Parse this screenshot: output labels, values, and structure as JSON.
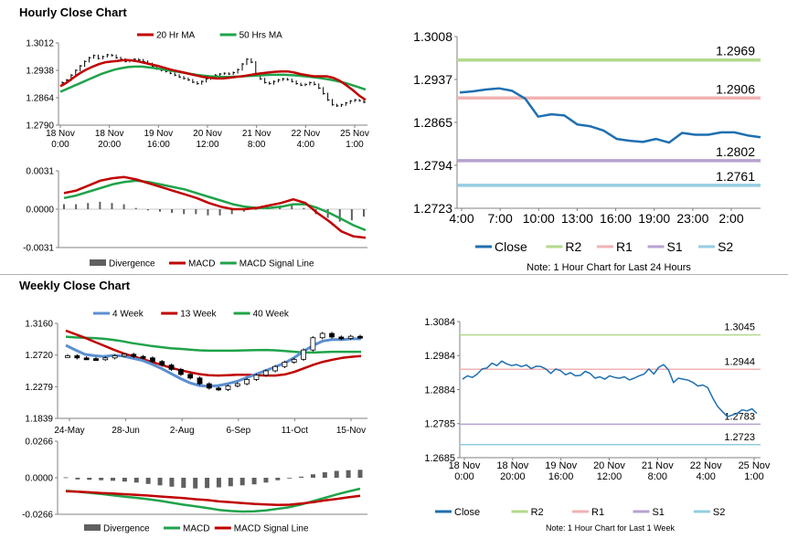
{
  "colors": {
    "ma20": "#c00000",
    "ma50": "#1fa34a",
    "ma4w": "#5b8fd0",
    "ma13w": "#c00000",
    "ma40w": "#1fa34a",
    "close": "#1f6fb0",
    "r2": "#b3d98c",
    "r1": "#f0b2b2",
    "s1": "#b7a2d0",
    "s2": "#93cde0",
    "divergence": "#606060",
    "price": "#000000",
    "axis": "#808080"
  },
  "hourly": {
    "title": "Hourly Close Chart",
    "price_chart": {
      "type": "line",
      "legend": [
        "20 Hr MA",
        "50 Hrs MA"
      ],
      "yticks": [
        "1.3012",
        "1.2938",
        "1.2864",
        "1.2790"
      ],
      "ylim": [
        1.279,
        1.3012
      ],
      "xtick_labels": [
        [
          "18 Nov",
          "0:00"
        ],
        [
          "18 Nov",
          "20:00"
        ],
        [
          "19 Nov",
          "16:00"
        ],
        [
          "20 Nov",
          "12:00"
        ],
        [
          "21 Nov",
          "8:00"
        ],
        [
          "22 Nov",
          "4:00"
        ],
        [
          "25 Nov",
          "1:00"
        ]
      ],
      "price": [
        1.2905,
        1.2912,
        1.2925,
        1.2938,
        1.295,
        1.2962,
        1.2972,
        1.2978,
        1.297,
        1.2975,
        1.298,
        1.2978,
        1.2972,
        1.2968,
        1.2962,
        1.2965,
        1.2968,
        1.2966,
        1.2962,
        1.2956,
        1.2948,
        1.2942,
        1.2938,
        1.2935,
        1.293,
        1.2925,
        1.292,
        1.2916,
        1.2912,
        1.2906,
        1.2902,
        1.2908,
        1.2915,
        1.292,
        1.2925,
        1.2928,
        1.293,
        1.2928,
        1.2932,
        1.294,
        1.2955,
        1.2968,
        1.296,
        1.293,
        1.2915,
        1.2905,
        1.2902,
        1.2908,
        1.2912,
        1.2915,
        1.2913,
        1.2908,
        1.2902,
        1.2898,
        1.29,
        1.2905,
        1.29,
        1.289,
        1.2875,
        1.2858,
        1.2845,
        1.2842,
        1.2845,
        1.285,
        1.2855,
        1.2858,
        1.2856,
        1.2852
      ],
      "series": [
        {
          "name": "20 Hr MA",
          "values": [
            1.2895,
            1.2905,
            1.2918,
            1.293,
            1.294,
            1.2948,
            1.2955,
            1.296,
            1.2962,
            1.2964,
            1.2966,
            1.2965,
            1.2962,
            1.2958,
            1.2954,
            1.295,
            1.2945,
            1.294,
            1.2936,
            1.2932,
            1.2928,
            1.2924,
            1.292,
            1.2918,
            1.2916,
            1.2916,
            1.2918,
            1.292,
            1.2922,
            1.2925,
            1.2928,
            1.293,
            1.2932,
            1.2934,
            1.2935,
            1.2935,
            1.2932,
            1.2928,
            1.2925,
            1.2922,
            1.2922,
            1.2922,
            1.2918,
            1.291,
            1.2898,
            1.2885,
            1.287,
            1.2858
          ]
        },
        {
          "name": "50 Hrs MA",
          "values": [
            1.288,
            1.2888,
            1.2896,
            1.2904,
            1.2912,
            1.292,
            1.2928,
            1.2934,
            1.294,
            1.2944,
            1.2947,
            1.2948,
            1.2948,
            1.2946,
            1.2944,
            1.2941,
            1.2938,
            1.2935,
            1.2932,
            1.2929,
            1.2926,
            1.2924,
            1.2922,
            1.2921,
            1.292,
            1.292,
            1.2921,
            1.2922,
            1.2923,
            1.2924,
            1.2925,
            1.2926,
            1.2926,
            1.2926,
            1.2925,
            1.2924,
            1.2922,
            1.292,
            1.2918,
            1.2915,
            1.2912,
            1.2908,
            1.2904,
            1.2898,
            1.2892,
            1.2886
          ]
        }
      ]
    },
    "macd_chart": {
      "type": "line",
      "legend": [
        "Divergence",
        "MACD",
        "MACD Signal Line"
      ],
      "yticks": [
        "0.0031",
        "0.0000",
        "-0.0031"
      ],
      "ylim": [
        -0.0031,
        0.0031
      ],
      "series": [
        {
          "name": "MACD",
          "values": [
            0.0013,
            0.0015,
            0.0019,
            0.0023,
            0.0025,
            0.0026,
            0.0024,
            0.0021,
            0.0018,
            0.0015,
            0.0012,
            0.0009,
            0.0005,
            0.0002,
            0.0,
            0.0,
            0.0001,
            0.0003,
            0.0005,
            0.0008,
            0.0005,
            -0.0003,
            -0.001,
            -0.0018,
            -0.0022,
            -0.0023
          ]
        },
        {
          "name": "MACD Signal Line",
          "values": [
            0.0009,
            0.0011,
            0.0014,
            0.0017,
            0.002,
            0.0022,
            0.0023,
            0.0022,
            0.002,
            0.0018,
            0.0016,
            0.0013,
            0.001,
            0.0007,
            0.0004,
            0.0002,
            0.0001,
            0.0001,
            0.0002,
            0.0004,
            0.0004,
            0.0001,
            -0.0003,
            -0.0008,
            -0.0013,
            -0.0017
          ]
        }
      ],
      "divergence": [
        0.0004,
        0.0004,
        0.0005,
        0.0006,
        0.0005,
        0.0004,
        0.0001,
        -0.0001,
        -0.0002,
        -0.0003,
        -0.0004,
        -0.0004,
        -0.0005,
        -0.0005,
        -0.0004,
        -0.0002,
        0.0,
        0.0002,
        0.0003,
        0.0004,
        0.0001,
        -0.0004,
        -0.0007,
        -0.001,
        -0.0009,
        -0.0006
      ]
    },
    "levels_chart": {
      "type": "line",
      "yticks": [
        "1.3008",
        "1.2937",
        "1.2865",
        "1.2794",
        "1.2723"
      ],
      "ylim": [
        1.2723,
        1.3008
      ],
      "xticks": [
        "4:00",
        "7:00",
        "10:00",
        "13:00",
        "16:00",
        "19:00",
        "23:00",
        "2:00"
      ],
      "levels": [
        {
          "name": "R2",
          "value": 1.2969,
          "label": "1.2969"
        },
        {
          "name": "R1",
          "value": 1.2906,
          "label": "1.2906"
        },
        {
          "name": "S1",
          "value": 1.2802,
          "label": "1.2802"
        },
        {
          "name": "S2",
          "value": 1.2761,
          "label": "1.2761"
        }
      ],
      "close": [
        1.2915,
        1.2917,
        1.292,
        1.2922,
        1.2918,
        1.2905,
        1.2875,
        1.2879,
        1.2877,
        1.2862,
        1.2859,
        1.2852,
        1.2838,
        1.2835,
        1.2833,
        1.2838,
        1.2832,
        1.2848,
        1.2845,
        1.2845,
        1.2849,
        1.2849,
        1.2844,
        1.2841
      ],
      "legend": [
        "Close",
        "R2",
        "R1",
        "S1",
        "S2"
      ],
      "note": "Note: 1 Hour Chart for Last 24 Hours"
    }
  },
  "weekly": {
    "title": "Weekly Close Chart",
    "price_chart": {
      "type": "line",
      "legend": [
        "4 Week",
        "13 Week",
        "40 Week"
      ],
      "yticks": [
        "1.3160",
        "1.2720",
        "1.2279",
        "1.1839"
      ],
      "ylim": [
        1.1839,
        1.316
      ],
      "xticks": [
        "24-May",
        "28-Jun",
        "2-Aug",
        "6-Sep",
        "11-Oct",
        "15-Nov"
      ],
      "price": [
        1.271,
        1.268,
        1.267,
        1.266,
        1.268,
        1.271,
        1.273,
        1.27,
        1.268,
        1.263,
        1.258,
        1.252,
        1.245,
        1.24,
        1.232,
        1.226,
        1.224,
        1.229,
        1.232,
        1.238,
        1.244,
        1.25,
        1.256,
        1.262,
        1.266,
        1.279,
        1.296,
        1.302,
        1.297,
        1.295,
        1.298,
        1.297
      ],
      "series": [
        {
          "name": "4 Week",
          "values": [
            1.2855,
            1.279,
            1.273,
            1.271,
            1.27,
            1.2715,
            1.2705,
            1.2675,
            1.2645,
            1.2595,
            1.2535,
            1.2465,
            1.2395,
            1.2335,
            1.2295,
            1.2285,
            1.2295,
            1.232,
            1.2355,
            1.2405,
            1.2455,
            1.2505,
            1.2555,
            1.261,
            1.2685,
            1.2775,
            1.2855,
            1.2915,
            1.2935,
            1.2935,
            1.2945,
            1.2945
          ]
        },
        {
          "name": "13 Week",
          "values": [
            1.306,
            1.301,
            1.296,
            1.2905,
            1.285,
            1.2795,
            1.2745,
            1.2705,
            1.2665,
            1.2625,
            1.2585,
            1.2545,
            1.251,
            1.248,
            1.2455,
            1.244,
            1.2435,
            1.244,
            1.2445,
            1.2445,
            1.244,
            1.2435,
            1.2435,
            1.245,
            1.2485,
            1.2535,
            1.2585,
            1.2625,
            1.2655,
            1.268,
            1.2695,
            1.2705
          ]
        },
        {
          "name": "40 Week",
          "values": [
            1.2975,
            1.2965,
            1.296,
            1.2955,
            1.2945,
            1.293,
            1.291,
            1.2885,
            1.2865,
            1.2845,
            1.283,
            1.2815,
            1.2805,
            1.2795,
            1.2785,
            1.278,
            1.278,
            1.278,
            1.2782,
            1.2785,
            1.2788,
            1.279,
            1.2785,
            1.2775,
            1.2765,
            1.2755,
            1.2755,
            1.276,
            1.2765,
            1.2765,
            1.2765,
            1.2765
          ]
        }
      ]
    },
    "macd_chart": {
      "type": "line",
      "legend": [
        "Divergence",
        "MACD",
        "MACD Signal Line"
      ],
      "yticks": [
        "0.0266",
        "0.0000",
        "-0.0266"
      ],
      "ylim": [
        -0.0266,
        0.0266
      ],
      "series": [
        {
          "name": "MACD",
          "values": [
            -0.0095,
            -0.0102,
            -0.011,
            -0.0118,
            -0.0128,
            -0.0138,
            -0.0146,
            -0.0156,
            -0.0168,
            -0.0182,
            -0.0196,
            -0.0208,
            -0.022,
            -0.0234,
            -0.0242,
            -0.0246,
            -0.0244,
            -0.0238,
            -0.0226,
            -0.0214,
            -0.0195,
            -0.017,
            -0.0146,
            -0.0122,
            -0.01,
            -0.008
          ]
        },
        {
          "name": "MACD Signal Line",
          "values": [
            -0.0098,
            -0.0102,
            -0.0106,
            -0.0111,
            -0.0115,
            -0.012,
            -0.0125,
            -0.013,
            -0.0136,
            -0.0142,
            -0.0148,
            -0.0156,
            -0.0162,
            -0.0172,
            -0.0178,
            -0.0184,
            -0.019,
            -0.0194,
            -0.0198,
            -0.0196,
            -0.0188,
            -0.0178,
            -0.0165,
            -0.0154,
            -0.0142,
            -0.0132
          ]
        }
      ],
      "divergence": [
        0.0003,
        -0.0012,
        -0.0015,
        -0.0018,
        -0.0022,
        -0.0028,
        -0.0035,
        -0.0045,
        -0.0055,
        -0.0065,
        -0.0073,
        -0.0078,
        -0.0075,
        -0.007,
        -0.0062,
        -0.0055,
        -0.0048,
        -0.0035,
        -0.0018,
        -0.0005,
        0.0008,
        0.0025,
        0.004,
        0.005,
        0.0055,
        0.0058
      ]
    },
    "levels_chart": {
      "type": "line",
      "yticks": [
        "1.3084",
        "1.2984",
        "1.2884",
        "1.2785",
        "1.2685"
      ],
      "ylim": [
        1.2685,
        1.3084
      ],
      "xtick_labels": [
        [
          "18 Nov",
          "0:00"
        ],
        [
          "18 Nov",
          "20:00"
        ],
        [
          "19 Nov",
          "16:00"
        ],
        [
          "20 Nov",
          "12:00"
        ],
        [
          "21 Nov",
          "8:00"
        ],
        [
          "22 Nov",
          "4:00"
        ],
        [
          "25 Nov",
          "1:00"
        ]
      ],
      "levels": [
        {
          "name": "R2",
          "value": 1.3045,
          "label": "1.3045"
        },
        {
          "name": "R1",
          "value": 1.2944,
          "label": "1.2944"
        },
        {
          "name": "S1",
          "value": 1.2783,
          "label": "1.2783"
        },
        {
          "name": "S2",
          "value": 1.2723,
          "label": "1.2723"
        }
      ],
      "close": [
        1.2915,
        1.2925,
        1.292,
        1.293,
        1.2945,
        1.2948,
        1.2962,
        1.2955,
        1.2968,
        1.296,
        1.2955,
        1.2958,
        1.2952,
        1.2957,
        1.2946,
        1.2953,
        1.2952,
        1.2945,
        1.2932,
        1.2945,
        1.294,
        1.2928,
        1.2934,
        1.2925,
        1.2926,
        1.2938,
        1.2932,
        1.2918,
        1.2922,
        1.2915,
        1.2925,
        1.292,
        1.2918,
        1.2922,
        1.2913,
        1.2918,
        1.2925,
        1.293,
        1.2945,
        1.293,
        1.295,
        1.2958,
        1.2942,
        1.2905,
        1.2918,
        1.2915,
        1.2912,
        1.2905,
        1.2895,
        1.2898,
        1.289,
        1.286,
        1.2835,
        1.282,
        1.2805,
        1.281,
        1.2815,
        1.2825,
        1.2822,
        1.2828,
        1.2815
      ],
      "legend": [
        "Close",
        "R2",
        "R1",
        "S1",
        "S2"
      ],
      "note": "Note: 1 Hour Chart for Last 1 Week"
    }
  }
}
